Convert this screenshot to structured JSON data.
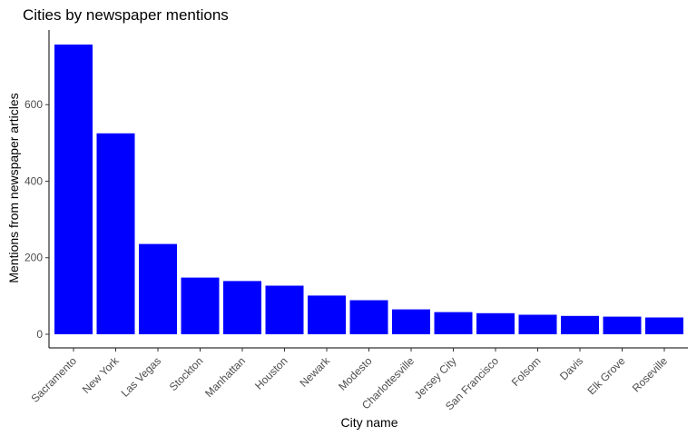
{
  "chart_data": {
    "type": "bar",
    "title": "Cities by newspaper mentions",
    "xlabel": "City name",
    "ylabel": "Mentions from newspaper articles",
    "categories": [
      "Sacramento",
      "New York",
      "Las Vegas",
      "Stockton",
      "Manhattan",
      "Houston",
      "Newark",
      "Modesto",
      "Charlottesville",
      "Jersey City",
      "San Francisco",
      "Folsom",
      "Davis",
      "Elk Grove",
      "Roseville"
    ],
    "values": [
      757,
      525,
      236,
      148,
      139,
      127,
      101,
      89,
      65,
      58,
      55,
      51,
      48,
      46,
      44
    ],
    "yticks": [
      0,
      200,
      400,
      600
    ],
    "ylim": [
      0,
      790
    ],
    "bar_color": "#0000ff",
    "grid": false,
    "legend": "none"
  }
}
